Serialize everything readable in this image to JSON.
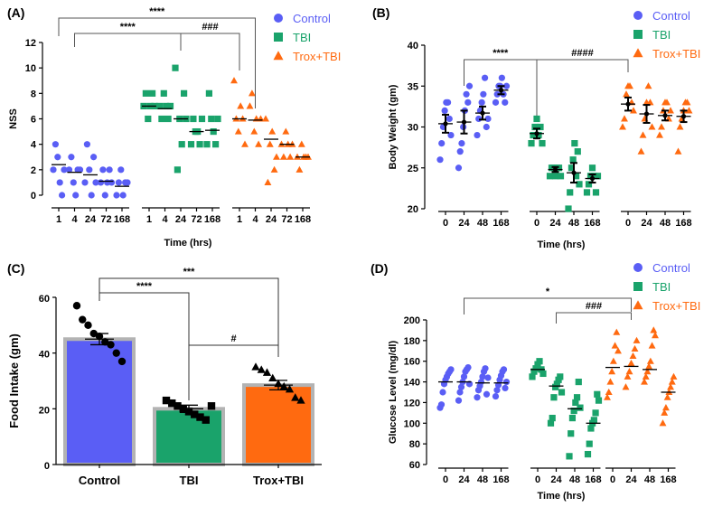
{
  "colors": {
    "control": "#5a5ef5",
    "tbi": "#1aa36b",
    "trox": "#ff6a10",
    "bar_outline": "#b3b3b3",
    "axis": "#000000"
  },
  "chart_data": [
    {
      "panel": "(A)",
      "type": "scatter",
      "xlabel": "Time (hrs)",
      "ylabel": "NSS",
      "ylim": [
        0,
        12
      ],
      "yticks": [
        "0",
        "2",
        "4",
        "6",
        "8",
        "10",
        "12"
      ],
      "legend": [
        {
          "name": "Control",
          "marker": "circle",
          "color": "#5a5ef5"
        },
        {
          "name": "TBI",
          "marker": "square",
          "color": "#1aa36b"
        },
        {
          "name": "Trox+TBI",
          "marker": "triangle",
          "color": "#ff6a10"
        }
      ],
      "groups": [
        {
          "name": "Control",
          "marker": "circle",
          "color": "#5a5ef5",
          "xticks": [
            "1",
            "4",
            "24",
            "72",
            "168"
          ],
          "points": [
            [
              2,
              4,
              3,
              1,
              0,
              2
            ],
            [
              2,
              3,
              1,
              0,
              2,
              2
            ],
            [
              1,
              4,
              2,
              0,
              3,
              1
            ],
            [
              1,
              2,
              0,
              1,
              2,
              1
            ],
            [
              0,
              1,
              2,
              0,
              1,
              1
            ]
          ],
          "means": [
            2.4,
            1.8,
            1.6,
            1.1,
            0.7
          ]
        },
        {
          "name": "TBI",
          "marker": "square",
          "color": "#1aa36b",
          "xticks": [
            "1",
            "4",
            "24",
            "72",
            "168"
          ],
          "points": [
            [
              7,
              8,
              6,
              7,
              8,
              7
            ],
            [
              7,
              6,
              8,
              7,
              6,
              7
            ],
            [
              10,
              2,
              6,
              4,
              8,
              6
            ],
            [
              4,
              6,
              5,
              5,
              4,
              6
            ],
            [
              4,
              8,
              6,
              5,
              4,
              6
            ]
          ],
          "means": [
            7.0,
            6.8,
            6.0,
            5.0,
            5.1
          ]
        },
        {
          "name": "Trox+TBI",
          "marker": "triangle",
          "color": "#ff6a10",
          "xticks": [
            "1",
            "4",
            "24",
            "72",
            "168"
          ],
          "points": [
            [
              9,
              6,
              5,
              7,
              6,
              4
            ],
            [
              7,
              8,
              5,
              6,
              4,
              6
            ],
            [
              6,
              1,
              4,
              5,
              2,
              3
            ],
            [
              4,
              3,
              5,
              4,
              3,
              4
            ],
            [
              3,
              2,
              4,
              3,
              3,
              3
            ]
          ],
          "means": [
            6.0,
            5.9,
            4.4,
            4.0,
            3.0
          ]
        }
      ],
      "annotations": [
        {
          "text": "****",
          "from": "Control 1",
          "to": "Trox+TBI 4"
        },
        {
          "text": "****",
          "from": "Control 4",
          "to": "TBI 24"
        },
        {
          "text": "###",
          "from": "TBI 24",
          "to": "Trox+TBI 1"
        }
      ]
    },
    {
      "panel": "(B)",
      "type": "scatter",
      "xlabel": "Time (hrs)",
      "ylabel": "Body Weight (gm)",
      "ylim": [
        20,
        40
      ],
      "yticks": [
        "20",
        "25",
        "30",
        "35",
        "40"
      ],
      "legend": [
        {
          "name": "Control",
          "marker": "circle",
          "color": "#5a5ef5"
        },
        {
          "name": "TBI",
          "marker": "square",
          "color": "#1aa36b"
        },
        {
          "name": "Trox+TBI",
          "marker": "triangle",
          "color": "#ff6a10"
        }
      ],
      "groups": [
        {
          "name": "Control",
          "marker": "circle",
          "color": "#5a5ef5",
          "xticks": [
            "0",
            "24",
            "48",
            "168"
          ],
          "points": [
            [
              26,
              28,
              30,
              32,
              33,
              33,
              31,
              29
            ],
            [
              25,
              27,
              28,
              30,
              32,
              34,
              33,
              35
            ],
            [
              29,
              31,
              32,
              33,
              34,
              36,
              30,
              31
            ],
            [
              33,
              34,
              35,
              35,
              36,
              34,
              33,
              35
            ]
          ],
          "means": [
            30.4,
            30.6,
            31.7,
            34.5
          ],
          "sems": [
            1.1,
            1.4,
            0.8,
            0.5
          ]
        },
        {
          "name": "TBI",
          "marker": "square",
          "color": "#1aa36b",
          "xticks": [
            "0",
            "24",
            "48",
            "168"
          ],
          "points": [
            [
              28,
              29,
              30,
              31,
              29,
              30,
              28
            ],
            [
              24,
              25,
              25,
              24,
              25,
              25,
              24
            ],
            [
              20,
              22,
              25,
              26,
              28,
              24,
              27,
              23
            ],
            [
              22,
              23,
              24,
              25,
              24,
              22,
              24
            ]
          ],
          "means": [
            29.2,
            24.8,
            24.4,
            23.7
          ],
          "sems": [
            0.6,
            0.3,
            1.2,
            0.5
          ]
        },
        {
          "name": "Trox+TBI",
          "marker": "triangle",
          "color": "#ff6a10",
          "xticks": [
            "0",
            "24",
            "48",
            "168"
          ],
          "points": [
            [
              30,
              31,
              34,
              35,
              35,
              33,
              32
            ],
            [
              27,
              29,
              31,
              33,
              35,
              33,
              30
            ],
            [
              29,
              30,
              32,
              33,
              33,
              31,
              32
            ],
            [
              27,
              30,
              31,
              32,
              33,
              33,
              32
            ]
          ],
          "means": [
            32.8,
            31.6,
            31.4,
            31.3
          ],
          "sems": [
            0.8,
            1.1,
            0.6,
            0.7
          ]
        }
      ],
      "annotations": [
        {
          "text": "****",
          "from": "Control 24",
          "to": "TBI 0"
        },
        {
          "text": "####",
          "from": "TBI 0",
          "to": "Trox+TBI 0"
        }
      ]
    },
    {
      "panel": "(C)",
      "type": "bar",
      "ylabel": "Food Intake (gm)",
      "ylim": [
        0,
        60
      ],
      "yticks": [
        "0",
        "20",
        "40",
        "60"
      ],
      "categories": [
        "Control",
        "TBI",
        "Trox+TBI"
      ],
      "values": [
        45,
        20,
        28.5
      ],
      "errors": [
        2.0,
        1.3,
        1.7
      ],
      "bar_colors": [
        "#5a5ef5",
        "#1aa36b",
        "#ff6a10"
      ],
      "points": [
        [
          57,
          52,
          50,
          47,
          46,
          44,
          43,
          40,
          37
        ],
        [
          23,
          22,
          21,
          20,
          19,
          18,
          17,
          16,
          21
        ],
        [
          35,
          34,
          33,
          31,
          29,
          28,
          27,
          24,
          23
        ]
      ],
      "point_markers": [
        "circle",
        "square",
        "triangle"
      ],
      "annotations": [
        {
          "text": "***",
          "from": "Control",
          "to": "Trox+TBI"
        },
        {
          "text": "****",
          "from": "Control",
          "to": "TBI"
        },
        {
          "text": "#",
          "from": "TBI",
          "to": "Trox+TBI"
        }
      ]
    },
    {
      "panel": "(D)",
      "type": "scatter",
      "xlabel": "Time (hrs)",
      "ylabel": "Glucose Level (mg/dl)",
      "ylim": [
        60,
        200
      ],
      "yticks": [
        "60",
        "80",
        "100",
        "120",
        "140",
        "160",
        "180",
        "200"
      ],
      "legend": [
        {
          "name": "Control",
          "marker": "circle",
          "color": "#5a5ef5"
        },
        {
          "name": "TBI",
          "marker": "square",
          "color": "#1aa36b"
        },
        {
          "name": "Trox+TBI",
          "marker": "triangle",
          "color": "#ff6a10"
        }
      ],
      "groups": [
        {
          "name": "Control",
          "marker": "circle",
          "color": "#5a5ef5",
          "xticks": [
            "0",
            "24",
            "48",
            "168"
          ],
          "points": [
            [
              115,
              118,
              130,
              138,
              142,
              145,
              148,
              150,
              152
            ],
            [
              122,
              130,
              135,
              140,
              145,
              150,
              152,
              154,
              138
            ],
            [
              125,
              132,
              136,
              140,
              145,
              150,
              153,
              128,
              144
            ],
            [
              126,
              132,
              137,
              142,
              146,
              150,
              152,
              134,
              140
            ]
          ],
          "means": [
            140,
            140,
            139,
            139
          ]
        },
        {
          "name": "TBI",
          "marker": "square",
          "color": "#1aa36b",
          "xticks": [
            "0",
            "24",
            "48",
            "168"
          ],
          "points": [
            [
              145,
              150,
              153,
              157,
              160,
              152,
              148
            ],
            [
              100,
              105,
              125,
              135,
              138,
              142,
              145,
              130
            ],
            [
              68,
              90,
              105,
              112,
              120,
              125,
              140,
              115
            ],
            [
              70,
              80,
              95,
              100,
              103,
              110,
              128,
              122
            ]
          ],
          "means": [
            152,
            136,
            114,
            100
          ]
        },
        {
          "name": "Trox+TBI",
          "marker": "triangle",
          "color": "#ff6a10",
          "xticks": [
            "0",
            "24",
            "48",
            "168"
          ],
          "points": [
            [
              125,
              130,
              140,
              150,
              160,
              175,
              188,
              170
            ],
            [
              135,
              145,
              150,
              158,
              165,
              172,
              180
            ],
            [
              140,
              145,
              150,
              155,
              160,
              175,
              190,
              185
            ],
            [
              100,
              110,
              115,
              125,
              130,
              135,
              140,
              145
            ]
          ],
          "means": [
            154,
            155,
            152,
            130
          ]
        }
      ],
      "annotations": [
        {
          "text": "*",
          "from": "Control 24",
          "to": "Trox+TBI 24"
        },
        {
          "text": "###",
          "from": "TBI 24",
          "to": "Trox+TBI 24"
        }
      ]
    }
  ]
}
